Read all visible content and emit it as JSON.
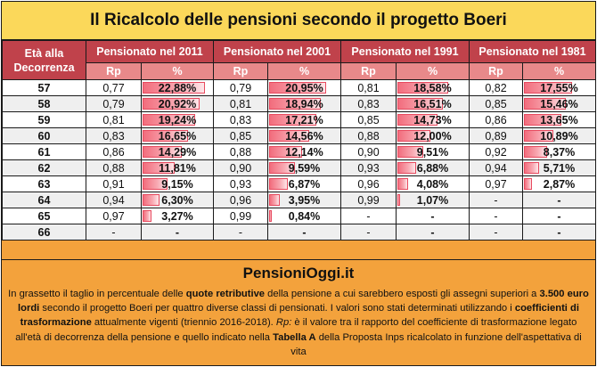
{
  "title": "Il Ricalcolo delle pensioni secondo il progetto Boeri",
  "header": {
    "age_label": "Età alla Decorrenza",
    "groups": [
      "Pensionato nel 2011",
      "Pensionato nel 2001",
      "Pensionato nel 1991",
      "Pensionato nel 1981"
    ],
    "rp_label": "Rp",
    "pct_label": "%"
  },
  "rows": [
    {
      "age": "57",
      "cells": [
        {
          "rp": "0,77",
          "pct": "22,88%",
          "v": 22.88
        },
        {
          "rp": "0,79",
          "pct": "20,95%",
          "v": 20.95
        },
        {
          "rp": "0,81",
          "pct": "18,58%",
          "v": 18.58
        },
        {
          "rp": "0,82",
          "pct": "17,55%",
          "v": 17.55
        }
      ]
    },
    {
      "age": "58",
      "cells": [
        {
          "rp": "0,79",
          "pct": "20,92%",
          "v": 20.92
        },
        {
          "rp": "0,81",
          "pct": "18,94%",
          "v": 18.94
        },
        {
          "rp": "0,83",
          "pct": "16,51%",
          "v": 16.51
        },
        {
          "rp": "0,85",
          "pct": "15,46%",
          "v": 15.46
        }
      ]
    },
    {
      "age": "59",
      "cells": [
        {
          "rp": "0,81",
          "pct": "19,24%",
          "v": 19.24
        },
        {
          "rp": "0,83",
          "pct": "17,21%",
          "v": 17.21
        },
        {
          "rp": "0,85",
          "pct": "14,73%",
          "v": 14.73
        },
        {
          "rp": "0,86",
          "pct": "13,65%",
          "v": 13.65
        }
      ]
    },
    {
      "age": "60",
      "cells": [
        {
          "rp": "0,83",
          "pct": "16,65%",
          "v": 16.65
        },
        {
          "rp": "0,85",
          "pct": "14,56%",
          "v": 14.56
        },
        {
          "rp": "0,88",
          "pct": "12,00%",
          "v": 12.0
        },
        {
          "rp": "0,89",
          "pct": "10,89%",
          "v": 10.89
        }
      ]
    },
    {
      "age": "61",
      "cells": [
        {
          "rp": "0,86",
          "pct": "14,29%",
          "v": 14.29
        },
        {
          "rp": "0,88",
          "pct": "12,14%",
          "v": 12.14
        },
        {
          "rp": "0,90",
          "pct": "9,51%",
          "v": 9.51
        },
        {
          "rp": "0,92",
          "pct": "8,37%",
          "v": 8.37
        }
      ]
    },
    {
      "age": "62",
      "cells": [
        {
          "rp": "0,88",
          "pct": "11,81%",
          "v": 11.81
        },
        {
          "rp": "0,90",
          "pct": "9,59%",
          "v": 9.59
        },
        {
          "rp": "0,93",
          "pct": "6,88%",
          "v": 6.88
        },
        {
          "rp": "0,94",
          "pct": "5,71%",
          "v": 5.71
        }
      ]
    },
    {
      "age": "63",
      "cells": [
        {
          "rp": "0,91",
          "pct": "9,15%",
          "v": 9.15
        },
        {
          "rp": "0,93",
          "pct": "6,87%",
          "v": 6.87
        },
        {
          "rp": "0,96",
          "pct": "4,08%",
          "v": 4.08
        },
        {
          "rp": "0,97",
          "pct": "2,87%",
          "v": 2.87
        }
      ]
    },
    {
      "age": "64",
      "cells": [
        {
          "rp": "0,94",
          "pct": "6,30%",
          "v": 6.3
        },
        {
          "rp": "0,96",
          "pct": "3,95%",
          "v": 3.95
        },
        {
          "rp": "0,99",
          "pct": "1,07%",
          "v": 1.07
        },
        {
          "rp": "-",
          "pct": "-",
          "v": 0
        }
      ]
    },
    {
      "age": "65",
      "cells": [
        {
          "rp": "0,97",
          "pct": "3,27%",
          "v": 3.27
        },
        {
          "rp": "0,99",
          "pct": "0,84%",
          "v": 0.84
        },
        {
          "rp": "-",
          "pct": "-",
          "v": 0
        },
        {
          "rp": "-",
          "pct": "-",
          "v": 0
        }
      ]
    },
    {
      "age": "66",
      "cells": [
        {
          "rp": "-",
          "pct": "-",
          "v": 0
        },
        {
          "rp": "-",
          "pct": "-",
          "v": 0
        },
        {
          "rp": "-",
          "pct": "-",
          "v": 0
        },
        {
          "rp": "-",
          "pct": "-",
          "v": 0
        }
      ]
    }
  ],
  "bar_max": 22.88,
  "brand": "PensioniOggi.it",
  "note": {
    "p1": "In grassetto il taglio in percentuale delle ",
    "b1": "quote retributive",
    "p2": " della pensione a cui sarebbero esposti gli assegni superiori a ",
    "b2": "3.500 euro lordi",
    "p3": " secondo il progetto Boeri per quattro diverse classi di pensionati. I valori sono stati determinati utilizzando i ",
    "b3": "coefficienti di trasformazione",
    "p4": " attualmente vigenti (triennio 2016-2018). ",
    "i1": "Rp:",
    "p5": " è il valore tra il rapporto del coefficiente di trasformazione legato all'età di decorrenza della pensione e quello indicato nella ",
    "b4": "Tabella A",
    "p6": " della Proposta Inps ricalcolato in funzione dell'aspettativa di vita"
  },
  "colors": {
    "title_bg": "#fbd85a",
    "header_bg": "#c0424b",
    "subheader_bg": "#e8898a",
    "footer_bg": "#f3a23c",
    "bar": "#f26d7d"
  }
}
